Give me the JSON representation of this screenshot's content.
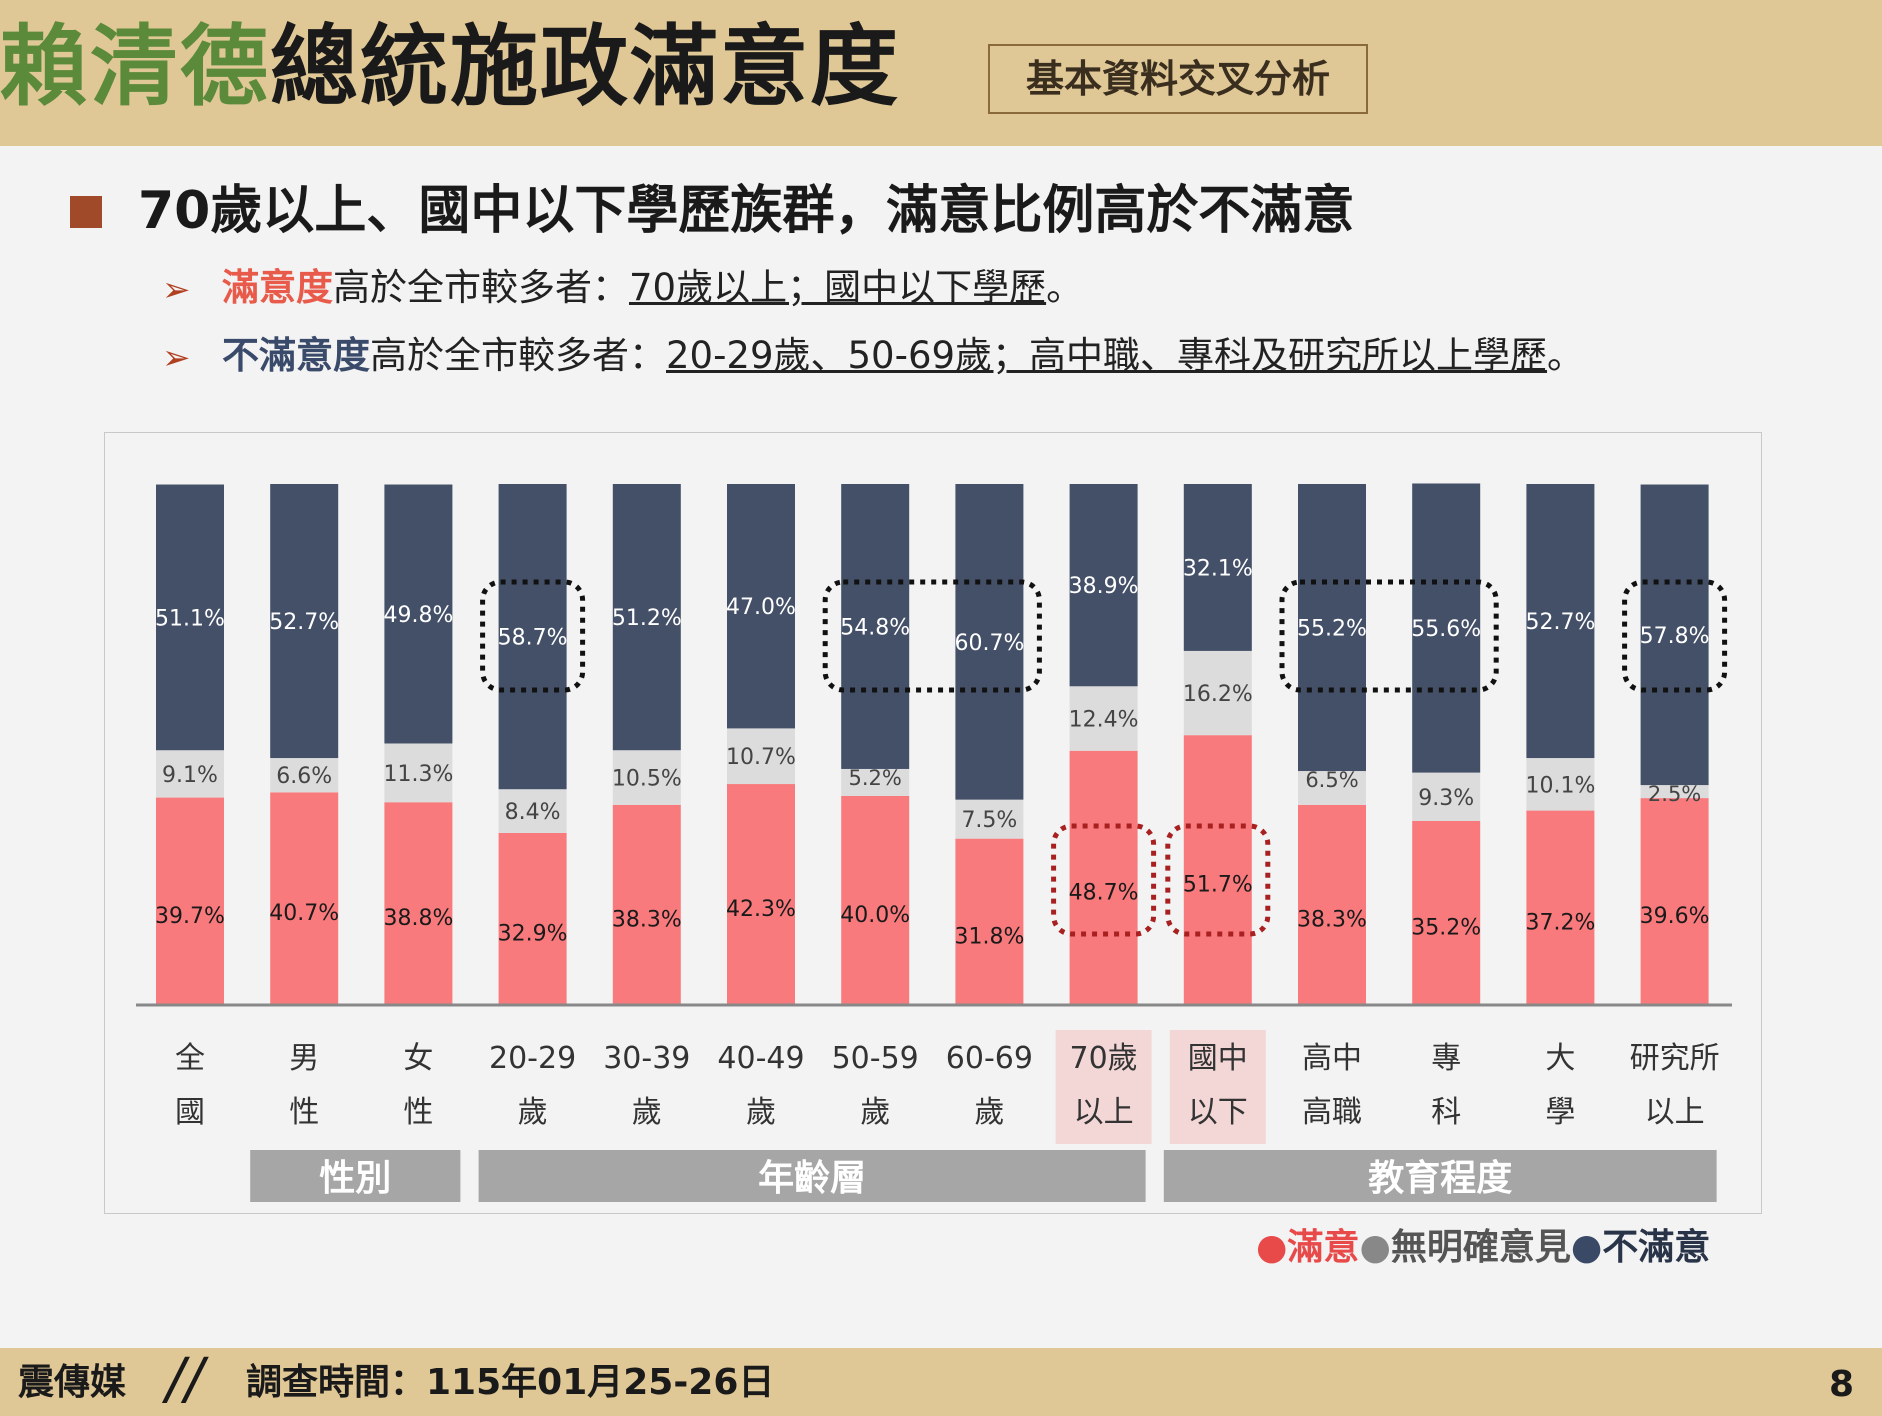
{
  "header": {
    "title_green": "賴清德",
    "title_dark": "總統施政滿意度",
    "subtitle": "基本資料交叉分析"
  },
  "main_point": "70歲以上、國中以下學歷族群，滿意比例高於不滿意",
  "sub_points": [
    {
      "highlight": "滿意度",
      "text": "高於全市較多者：",
      "underlined": "70歲以上；國中以下學歷",
      "end": "。"
    },
    {
      "highlight": "不滿意度",
      "text": "高於全市較多者：",
      "underlined": "20-29歲、50-69歲；高中職、專科及研究所以上學歷",
      "end": "。"
    }
  ],
  "chart_data": {
    "type": "bar",
    "stacked": true,
    "percent_stacked": true,
    "categories": [
      [
        "全",
        "國"
      ],
      [
        "男",
        "性"
      ],
      [
        "女",
        "性"
      ],
      [
        "20-29",
        "歲"
      ],
      [
        "30-39",
        "歲"
      ],
      [
        "40-49",
        "歲"
      ],
      [
        "50-59",
        "歲"
      ],
      [
        "60-69",
        "歲"
      ],
      [
        "70歲",
        "以上"
      ],
      [
        "國中",
        "以下"
      ],
      [
        "高中",
        "高職"
      ],
      [
        "專",
        "科"
      ],
      [
        "大",
        "學"
      ],
      [
        "研究所",
        "以上"
      ]
    ],
    "series": [
      {
        "name": "滿意",
        "color": "#f97a7c",
        "values": [
          39.7,
          40.7,
          38.8,
          32.9,
          38.3,
          42.3,
          40.0,
          31.8,
          48.7,
          51.7,
          38.3,
          35.2,
          37.2,
          39.6
        ]
      },
      {
        "name": "無明確意見",
        "color": "#dcdcdc",
        "values": [
          9.1,
          6.6,
          11.3,
          8.4,
          10.5,
          10.7,
          5.2,
          7.5,
          12.4,
          16.2,
          6.5,
          9.3,
          10.1,
          2.5
        ]
      },
      {
        "name": "不滿意",
        "color": "#445068",
        "values": [
          51.1,
          52.7,
          49.8,
          58.7,
          51.2,
          47.0,
          54.8,
          60.7,
          38.9,
          32.1,
          55.2,
          55.6,
          52.7,
          57.8
        ]
      }
    ],
    "value_labels": [
      [
        "39.7%",
        "9.1%",
        "51.1%"
      ],
      [
        "40.7%",
        "6.6%",
        "52.7%"
      ],
      [
        "38.8%",
        "11.3%",
        "49.8%"
      ],
      [
        "32.9%",
        "8.4%",
        "58.7%"
      ],
      [
        "38.3%",
        "10.5%",
        "51.2%"
      ],
      [
        "42.3%",
        "10.7%",
        "47.0%"
      ],
      [
        "40.0%",
        "5.2%",
        "54.8%"
      ],
      [
        "31.8%",
        "7.5%",
        "60.7%"
      ],
      [
        "48.7%",
        "12.4%",
        "38.9%"
      ],
      [
        "51.7%",
        "16.2%",
        "32.1%"
      ],
      [
        "38.3%",
        "6.5%",
        "55.2%"
      ],
      [
        "35.2%",
        "9.3%",
        "55.6%"
      ],
      [
        "37.2%",
        "10.1%",
        "52.7%"
      ],
      [
        "39.6%",
        "2.5%",
        "57.8%"
      ]
    ],
    "groups": [
      {
        "label": "性別",
        "from": 1,
        "to": 2
      },
      {
        "label": "年齡層",
        "from": 3,
        "to": 8
      },
      {
        "label": "教育程度",
        "from": 9,
        "to": 13
      }
    ],
    "highlighted_categories": [
      8,
      9
    ],
    "dotted_boxes": [
      {
        "series": "不滿意",
        "from": 3,
        "to": 3
      },
      {
        "series": "不滿意",
        "from": 6,
        "to": 7
      },
      {
        "series": "不滿意",
        "from": 10,
        "to": 11
      },
      {
        "series": "不滿意",
        "from": 13,
        "to": 13
      },
      {
        "series": "滿意",
        "from": 8,
        "to": 8
      },
      {
        "series": "滿意",
        "from": 9,
        "to": 9
      }
    ],
    "ylim": [
      0,
      100
    ],
    "legend_position": "bottom-right"
  },
  "legend": [
    {
      "label": "滿意",
      "color": "#e84a4a"
    },
    {
      "label": "無明確意見",
      "color": "#888888"
    },
    {
      "label": "不滿意",
      "color": "#3a4a66"
    }
  ],
  "footer": {
    "brand": "震傳媒",
    "survey_date": "調查時間：115年01月25-26日",
    "page": "8"
  }
}
